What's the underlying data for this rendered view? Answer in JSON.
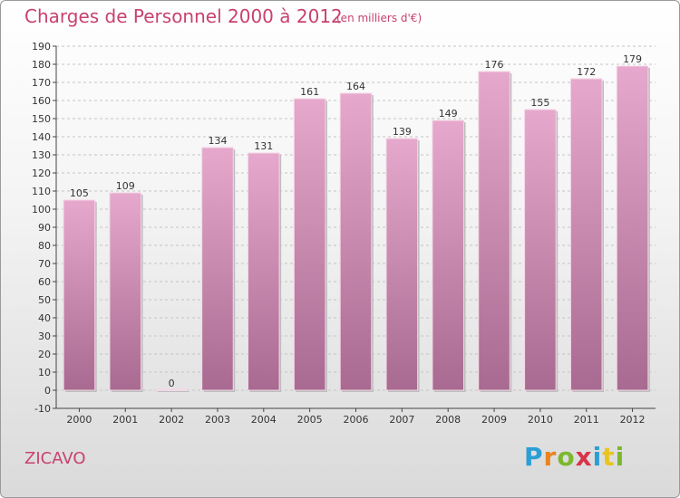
{
  "header": {
    "title": "Charges de Personnel 2000 à 2012",
    "subtitle": "(en milliers d'€)"
  },
  "commune": "ZICAVO",
  "logo": [
    "P",
    "r",
    "o",
    "x",
    "i",
    "t",
    "i"
  ],
  "chart_data": {
    "type": "bar",
    "title": "Charges de Personnel 2000 à 2012",
    "subtitle": "(en milliers d'€)",
    "xlabel": "",
    "ylabel": "",
    "categories": [
      "2000",
      "2001",
      "2002",
      "2003",
      "2004",
      "2005",
      "2006",
      "2007",
      "2008",
      "2009",
      "2010",
      "2011",
      "2012"
    ],
    "values": [
      105,
      109,
      0,
      134,
      131,
      161,
      164,
      139,
      149,
      176,
      155,
      172,
      179
    ],
    "data_labels": [
      "105",
      "109",
      "0",
      "134",
      "131",
      "161",
      "164",
      "139",
      "149",
      "176",
      "155",
      "172",
      "179"
    ],
    "ylim": [
      -10,
      190
    ],
    "yticks": [
      -10,
      0,
      10,
      20,
      30,
      40,
      50,
      60,
      70,
      80,
      90,
      100,
      110,
      120,
      130,
      140,
      150,
      160,
      170,
      180,
      190
    ],
    "ytick_labels": [
      "-10",
      "0",
      "10",
      "20",
      "30",
      "40",
      "50",
      "60",
      "70",
      "80",
      "90",
      "100",
      "110",
      "120",
      "130",
      "140",
      "150",
      "160",
      "170",
      "180",
      "190"
    ],
    "grid": true,
    "legend": "none",
    "colors": {
      "bar_top": "#e6a8cc",
      "bar_bottom": "#a86a90",
      "accent": "#c8426e"
    }
  }
}
